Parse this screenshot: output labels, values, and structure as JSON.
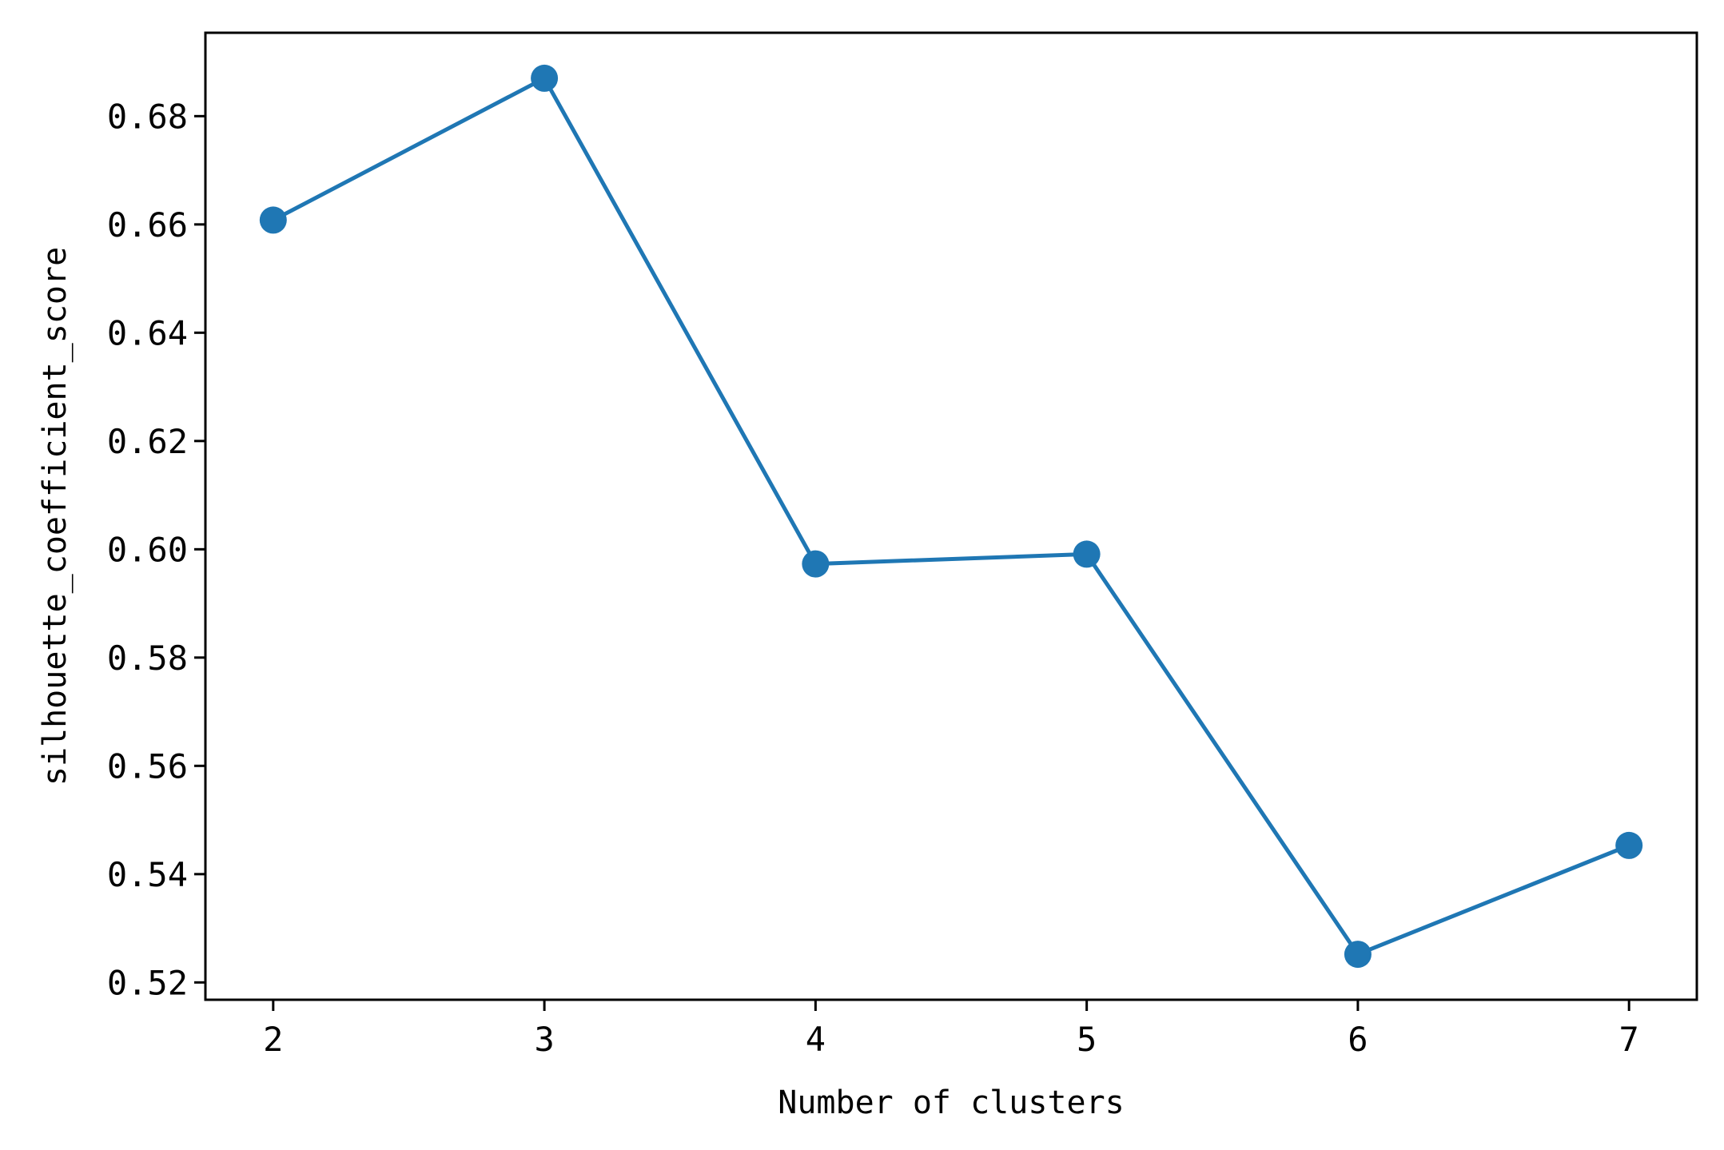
{
  "chart_data": {
    "type": "line",
    "title": "",
    "xlabel": "Number of clusters",
    "ylabel": "silhouette_coefficient_score",
    "x": [
      2,
      3,
      4,
      5,
      6,
      7
    ],
    "series": [
      {
        "values": [
          0.6608,
          0.687,
          0.5973,
          0.5991,
          0.5252,
          0.5453
        ],
        "color": "#1f77b4",
        "marker": "circle"
      }
    ],
    "xticks": [
      "2",
      "3",
      "4",
      "5",
      "6",
      "7"
    ],
    "yticks": [
      "0.52",
      "0.54",
      "0.56",
      "0.58",
      "0.60",
      "0.62",
      "0.64",
      "0.66",
      "0.68"
    ],
    "ytick_values": [
      0.52,
      0.54,
      0.56,
      0.58,
      0.6,
      0.62,
      0.64,
      0.66,
      0.68
    ],
    "xlim": [
      1.75,
      7.25
    ],
    "ylim": [
      0.5168,
      0.6954
    ],
    "grid": false,
    "legend": "none",
    "frame_color": "#000000"
  }
}
